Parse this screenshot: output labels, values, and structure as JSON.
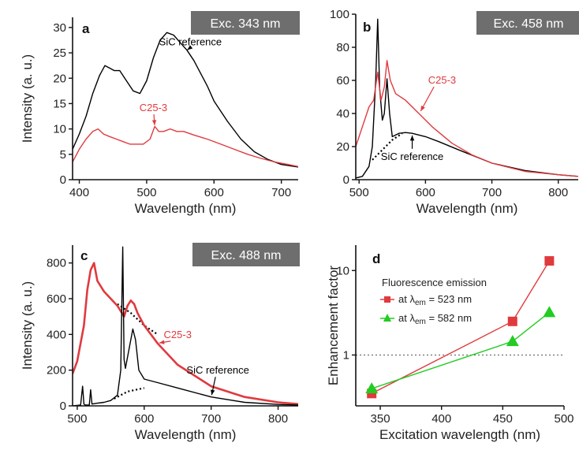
{
  "chart_data": [
    {
      "panel": "a",
      "type": "line",
      "badge": "Exc. 343 nm",
      "xlabel": "Wavelength (nm)",
      "ylabel": "Intensity (a. u.)",
      "xlim": [
        390,
        725
      ],
      "ylim": [
        0,
        32
      ],
      "xticks": [
        "400",
        "500",
        "600",
        "700"
      ],
      "yticks": [
        "0",
        "5",
        "10",
        "15",
        "20",
        "25",
        "30"
      ],
      "series": [
        {
          "name": "SiC reference",
          "color": "#000000",
          "x": [
            390,
            400,
            410,
            420,
            430,
            438,
            445,
            452,
            460,
            470,
            480,
            490,
            500,
            510,
            520,
            530,
            540,
            550,
            560,
            570,
            580,
            590,
            600,
            620,
            640,
            660,
            680,
            700,
            725
          ],
          "y": [
            6,
            9,
            12.5,
            17,
            20.5,
            22.5,
            22,
            21.5,
            21.5,
            19.5,
            17.5,
            17,
            19.5,
            24,
            27.5,
            29,
            28.5,
            27,
            25.5,
            23.5,
            21,
            18.5,
            15.5,
            11.5,
            8,
            5.5,
            4,
            3,
            2.5
          ]
        },
        {
          "name": "C25-3",
          "color": "#e03a3e",
          "x": [
            390,
            400,
            410,
            420,
            428,
            436,
            445,
            455,
            465,
            475,
            485,
            495,
            505,
            512,
            518,
            525,
            535,
            545,
            555,
            570,
            590,
            610,
            630,
            650,
            670,
            690,
            710,
            725
          ],
          "y": [
            3.5,
            6,
            8,
            9.5,
            10,
            9,
            8.5,
            8,
            7.5,
            7,
            7,
            7,
            8,
            10.5,
            9.5,
            9.5,
            10,
            9.5,
            9.5,
            8.8,
            8,
            7,
            6,
            5,
            4.2,
            3.5,
            3,
            2.6
          ]
        }
      ],
      "annotations": [
        {
          "text": "SiC reference",
          "series": 0,
          "x": 565,
          "y": 26.5
        },
        {
          "text": "C25-3",
          "series": 1,
          "x": 510,
          "y": 13.5
        }
      ]
    },
    {
      "panel": "b",
      "type": "line",
      "badge": "Exc. 458 nm",
      "xlabel": "Wavelength (nm)",
      "ylabel": "",
      "xlim": [
        495,
        830
      ],
      "ylim": [
        0,
        100
      ],
      "xticks": [
        "500",
        "600",
        "700",
        "800"
      ],
      "yticks": [
        "0",
        "20",
        "40",
        "60",
        "80",
        "100"
      ],
      "series": [
        {
          "name": "SiC reference",
          "color": "#000000",
          "x": [
            495,
            505,
            515,
            520,
            525,
            528,
            531,
            535,
            538,
            542,
            546,
            550,
            560,
            570,
            580,
            600,
            620,
            650,
            700,
            750,
            800,
            830
          ],
          "y": [
            1,
            2,
            8,
            20,
            60,
            97,
            55,
            36,
            40,
            61,
            40,
            26,
            28,
            28.5,
            28,
            26,
            23,
            18,
            10,
            5.5,
            3,
            2
          ],
          "segment_xlim": [
            495,
            830
          ]
        },
        {
          "name": "C25-3",
          "color": "#e03a3e",
          "x": [
            495,
            505,
            515,
            522,
            528,
            533,
            538,
            542,
            547,
            555,
            570,
            590,
            610,
            640,
            670,
            700,
            750,
            800,
            830
          ],
          "y": [
            20,
            32,
            44,
            48,
            65,
            48,
            56,
            72,
            60,
            52,
            48,
            40,
            32,
            22,
            15,
            10,
            5,
            3,
            2
          ]
        }
      ],
      "dotted": {
        "x": [
          520,
          535,
          550,
          565
        ],
        "y": [
          12,
          18,
          24,
          28
        ]
      },
      "annotations": [
        {
          "text": "C25-3",
          "series": 1,
          "x": 625,
          "y": 58
        },
        {
          "text": "SiC reference",
          "series": 0,
          "x": 580,
          "y": 12
        }
      ]
    },
    {
      "panel": "c",
      "type": "line",
      "badge": "Exc. 488 nm",
      "xlabel": "Wavelength (nm)",
      "ylabel": "Intensity (a. u.)",
      "xlim": [
        493,
        830
      ],
      "ylim": [
        0,
        900
      ],
      "xticks": [
        "500",
        "600",
        "700",
        "800"
      ],
      "yticks": [
        "0",
        "200",
        "400",
        "600",
        "800"
      ],
      "series": [
        {
          "name": "C25-3",
          "color": "#e03a3e",
          "x": [
            493,
            500,
            510,
            515,
            520,
            525,
            530,
            540,
            550,
            560,
            570,
            575,
            580,
            585,
            590,
            600,
            620,
            650,
            700,
            750,
            800,
            830
          ],
          "y": [
            180,
            250,
            450,
            650,
            760,
            800,
            700,
            640,
            600,
            560,
            500,
            560,
            590,
            570,
            520,
            450,
            350,
            230,
            110,
            50,
            20,
            10
          ]
        },
        {
          "name": "SiC reference",
          "color": "#000000",
          "x": [
            493,
            505,
            508,
            510,
            512,
            518,
            520,
            522,
            530,
            540,
            550,
            560,
            565,
            568,
            570,
            572,
            578,
            583,
            587,
            592,
            600,
            620,
            650,
            700,
            750,
            800,
            830
          ],
          "y": [
            0,
            5,
            110,
            10,
            5,
            5,
            90,
            10,
            15,
            20,
            30,
            60,
            200,
            890,
            260,
            210,
            330,
            430,
            370,
            200,
            150,
            130,
            100,
            50,
            20,
            8,
            5
          ]
        }
      ],
      "dotted": [
        {
          "x": [
            555,
            575,
            600
          ],
          "y": [
            40,
            80,
            100
          ]
        },
        {
          "x": [
            560,
            580,
            600,
            620
          ],
          "y": [
            570,
            520,
            450,
            400
          ]
        }
      ],
      "annotations": [
        {
          "text": "C25-3",
          "series": 0,
          "x": 650,
          "y": 380
        },
        {
          "text": "SiC reference",
          "series": 1,
          "x": 710,
          "y": 180
        }
      ]
    },
    {
      "panel": "d",
      "type": "line",
      "badge": "",
      "xlabel": "Excitation wavelength (nm)",
      "ylabel": "Enhancement factor",
      "xlim": [
        330,
        500
      ],
      "ylim": [
        0.25,
        20
      ],
      "y_scale": "log",
      "xticks": [
        "350",
        "400",
        "450",
        "500"
      ],
      "yticks": [
        "1",
        "10"
      ],
      "reference_line": 1,
      "legend_title": "Fluorescence emission",
      "series": [
        {
          "name": "at λem = 523 nm",
          "name_parts": [
            "at λ",
            "em",
            " = 523 nm"
          ],
          "color": "#e03a3e",
          "marker": "square",
          "x": [
            343,
            458,
            488
          ],
          "y": [
            0.35,
            2.5,
            13
          ]
        },
        {
          "name": "at λem = 582 nm",
          "name_parts": [
            "at λ",
            "em",
            " = 582 nm"
          ],
          "color": "#22cc22",
          "marker": "triangle",
          "x": [
            343,
            458,
            488
          ],
          "y": [
            0.4,
            1.45,
            3.2
          ]
        }
      ]
    }
  ]
}
